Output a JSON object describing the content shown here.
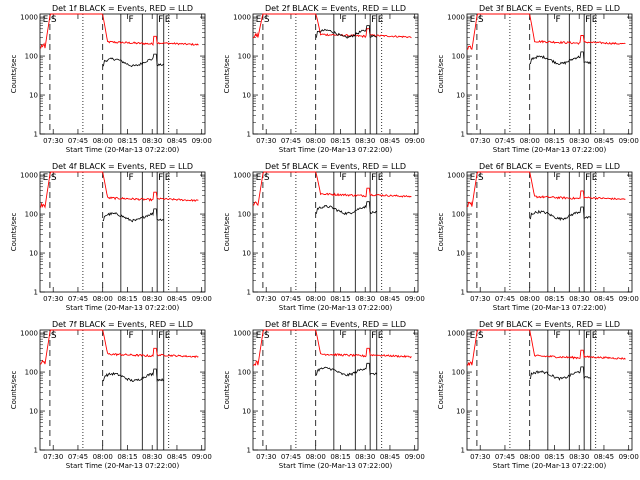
{
  "chart_data": {
    "type": "line",
    "layout": "3x3 grid",
    "common": {
      "x_tick_labels": [
        "07:30",
        "07:45",
        "08:00",
        "08:15",
        "08:30",
        "08:45",
        "09:00"
      ],
      "x_tick_minutes_after_0722": [
        8,
        23,
        38,
        53,
        68,
        83,
        98
      ],
      "xlim_minutes_after_0722": [
        0,
        100
      ],
      "xlabel": "Start Time (20-Mar-13 07:22:00)",
      "ylabel": "Counts/sec",
      "y_tick_labels": [
        "1",
        "10",
        "100",
        "1000"
      ],
      "ylim": [
        1,
        1200
      ],
      "y_scale": "log",
      "markers": [
        {
          "label": "E",
          "minute": 1
        },
        {
          "label": "S",
          "minute": 6
        },
        {
          "label": "F",
          "minute": 53
        },
        {
          "label": "F",
          "minute": 71
        },
        {
          "label": "E",
          "minute": 75
        }
      ],
      "dashed_lines_minutes": [
        6,
        38
      ],
      "dotted_lines_minutes": [
        26,
        78
      ],
      "solid_lines_minutes": [
        49,
        62,
        71,
        75
      ],
      "series_colors": {
        "Events": "#000000",
        "LLD": "#ff0000"
      }
    },
    "panels": [
      {
        "title": "Det 1f BLACK = Events, RED = LLD",
        "lld_level": 230,
        "events_level": 70,
        "rise": 160
      },
      {
        "title": "Det 2f BLACK = Events, RED = LLD",
        "lld_level": 360,
        "events_level": 380,
        "rise": 300
      },
      {
        "title": "Det 3f BLACK = Events, RED = LLD",
        "lld_level": 240,
        "events_level": 80,
        "rise": 150
      },
      {
        "title": "Det 4f BLACK = Events, RED = LLD",
        "lld_level": 260,
        "events_level": 85,
        "rise": 150
      },
      {
        "title": "Det 5f BLACK = Events, RED = LLD",
        "lld_level": 330,
        "events_level": 130,
        "rise": 170
      },
      {
        "title": "Det 6f BLACK = Events, RED = LLD",
        "lld_level": 280,
        "events_level": 95,
        "rise": 155
      },
      {
        "title": "Det 7f BLACK = Events, RED = LLD",
        "lld_level": 290,
        "events_level": 75,
        "rise": 160
      },
      {
        "title": "Det 8f BLACK = Events, RED = LLD",
        "lld_level": 290,
        "events_level": 105,
        "rise": 150
      },
      {
        "title": "Det 9f BLACK = Events, RED = LLD",
        "lld_level": 260,
        "events_level": 85,
        "rise": 150
      }
    ]
  }
}
